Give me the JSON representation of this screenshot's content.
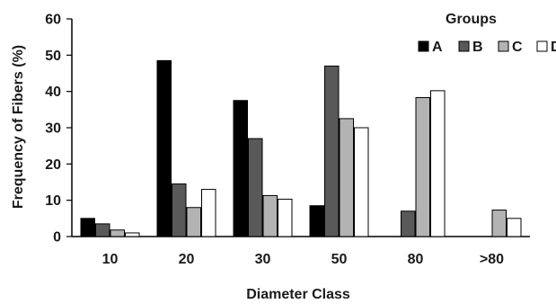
{
  "chart_data": {
    "type": "bar",
    "categories": [
      "10",
      "20",
      "30",
      "50",
      "80",
      ">80"
    ],
    "series": [
      {
        "name": "A",
        "color": "#000000",
        "values": [
          5,
          48.5,
          37.5,
          8.5,
          0,
          0
        ]
      },
      {
        "name": "B",
        "color": "#595959",
        "values": [
          3.5,
          14.5,
          27,
          47,
          7,
          0
        ]
      },
      {
        "name": "C",
        "color": "#b3b3b3",
        "values": [
          1.8,
          8,
          11.3,
          32.5,
          38.3,
          7.3
        ]
      },
      {
        "name": "D",
        "color": "#ffffff",
        "values": [
          1,
          13,
          10.3,
          30,
          40.2,
          5
        ]
      }
    ],
    "title": "",
    "xlabel": "Diameter Class",
    "ylabel": "Frequency of Fibers (%)",
    "ylim": [
      0,
      60
    ],
    "yticks": [
      "0",
      "10",
      "20",
      "30",
      "40",
      "50",
      "60"
    ],
    "legend_title": "Groups",
    "legend_position": "top-right",
    "grid": false
  }
}
